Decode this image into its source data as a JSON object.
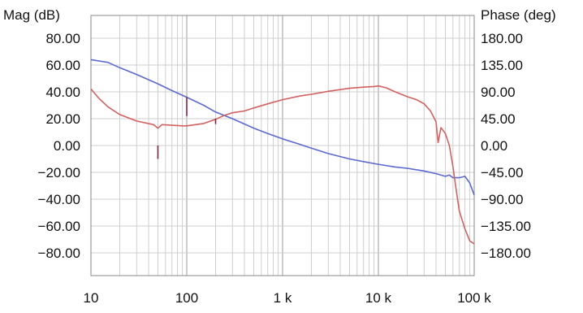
{
  "chart_data": {
    "type": "line",
    "xscale": "log",
    "xlim": [
      10,
      100000
    ],
    "x_ticks": [
      {
        "value": 10,
        "label": "10"
      },
      {
        "value": 100,
        "label": "100"
      },
      {
        "value": 1000,
        "label": "1 k"
      },
      {
        "value": 10000,
        "label": "10 k"
      },
      {
        "value": 100000,
        "label": "100 k"
      }
    ],
    "y_left": {
      "label": "Mag (dB)",
      "lim": [
        -97,
        97
      ],
      "ticks": [
        {
          "value": 80,
          "label": "80.00"
        },
        {
          "value": 60,
          "label": "60.00"
        },
        {
          "value": 40,
          "label": "40.00"
        },
        {
          "value": 20,
          "label": "20.00"
        },
        {
          "value": 0,
          "label": "0.00"
        },
        {
          "value": -20,
          "label": "−20.00"
        },
        {
          "value": -40,
          "label": "−40.00"
        },
        {
          "value": -60,
          "label": "−60.00"
        },
        {
          "value": -80,
          "label": "−80.00"
        }
      ]
    },
    "y_right": {
      "label": "Phase (deg)",
      "lim": [
        -218.25,
        218.25
      ],
      "ticks": [
        {
          "value": 180,
          "label": "180.00"
        },
        {
          "value": 135,
          "label": "135.00"
        },
        {
          "value": 90,
          "label": "90.00"
        },
        {
          "value": 45,
          "label": "45.00"
        },
        {
          "value": 0,
          "label": "0.00"
        },
        {
          "value": -45,
          "label": "−45.00"
        },
        {
          "value": -90,
          "label": "−90.00"
        },
        {
          "value": -135,
          "label": "−135.00"
        },
        {
          "value": -180,
          "label": "−180.00"
        }
      ]
    },
    "grid": true,
    "series": [
      {
        "axis": "left",
        "color": "#5a6ad0",
        "points": [
          [
            10,
            64
          ],
          [
            15,
            62
          ],
          [
            20,
            58
          ],
          [
            30,
            53
          ],
          [
            50,
            46
          ],
          [
            70,
            41
          ],
          [
            100,
            36
          ],
          [
            150,
            30
          ],
          [
            200,
            25
          ],
          [
            300,
            20
          ],
          [
            500,
            13
          ],
          [
            700,
            9
          ],
          [
            1000,
            5
          ],
          [
            1500,
            1
          ],
          [
            2000,
            -2
          ],
          [
            3000,
            -6
          ],
          [
            5000,
            -10
          ],
          [
            7000,
            -12
          ],
          [
            10000,
            -14
          ],
          [
            15000,
            -16
          ],
          [
            20000,
            -17
          ],
          [
            30000,
            -19
          ],
          [
            40000,
            -21
          ],
          [
            50000,
            -23
          ],
          [
            55000,
            -22
          ],
          [
            60000,
            -24
          ],
          [
            70000,
            -24
          ],
          [
            80000,
            -23
          ],
          [
            90000,
            -28
          ],
          [
            100000,
            -37
          ]
        ]
      },
      {
        "axis": "right",
        "color": "#d46060",
        "points": [
          [
            10,
            95
          ],
          [
            12,
            80
          ],
          [
            15,
            65
          ],
          [
            20,
            52
          ],
          [
            30,
            41
          ],
          [
            45,
            35
          ],
          [
            50,
            29
          ],
          [
            55,
            35
          ],
          [
            70,
            34
          ],
          [
            90,
            33
          ],
          [
            100,
            33
          ],
          [
            150,
            37
          ],
          [
            200,
            44
          ],
          [
            250,
            51
          ],
          [
            300,
            55
          ],
          [
            400,
            58
          ],
          [
            500,
            63
          ],
          [
            700,
            70
          ],
          [
            1000,
            77
          ],
          [
            1500,
            83
          ],
          [
            2000,
            86
          ],
          [
            3000,
            91
          ],
          [
            5000,
            96
          ],
          [
            7000,
            98
          ],
          [
            9000,
            99
          ],
          [
            10000,
            100
          ],
          [
            12000,
            97
          ],
          [
            15000,
            90
          ],
          [
            20000,
            82
          ],
          [
            25000,
            77
          ],
          [
            30000,
            70
          ],
          [
            35000,
            58
          ],
          [
            40000,
            40
          ],
          [
            42000,
            5
          ],
          [
            45000,
            30
          ],
          [
            50000,
            20
          ],
          [
            55000,
            0
          ],
          [
            60000,
            -35
          ],
          [
            65000,
            -75
          ],
          [
            70000,
            -110
          ],
          [
            80000,
            -140
          ],
          [
            90000,
            -160
          ],
          [
            100000,
            -165
          ]
        ]
      }
    ],
    "markers": [
      {
        "x": 100,
        "from": 36,
        "to": 22,
        "axis": "left"
      },
      {
        "x": 50,
        "from": 0,
        "to": -10,
        "axis": "left"
      },
      {
        "x": 200,
        "from": 20,
        "to": 16,
        "axis": "left"
      }
    ]
  }
}
